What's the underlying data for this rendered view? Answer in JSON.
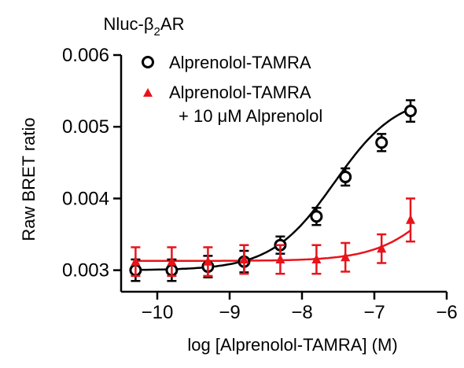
{
  "chart_data": {
    "type": "scatter",
    "title": "Nluc-β2AR",
    "xlabel": "log [Alprenolol-TAMRA] (M)",
    "ylabel": "Raw BRET ratio",
    "xlim": [
      -10.5,
      -6
    ],
    "ylim": [
      0.0027,
      0.006
    ],
    "xticks": [
      -10,
      -9,
      -8,
      -7,
      -6
    ],
    "xtick_labels": [
      "−10",
      "−9",
      "−8",
      "−7",
      "−6"
    ],
    "yticks": [
      0.003,
      0.004,
      0.005,
      0.006
    ],
    "ytick_labels": [
      "0.003",
      "0.004",
      "0.005",
      "0.006"
    ],
    "legend_position": "top",
    "series": [
      {
        "name": "Alprenolol-TAMRA",
        "marker": "open-circle",
        "color": "#000000",
        "x": [
          -10.3,
          -9.8,
          -9.3,
          -8.8,
          -8.3,
          -7.8,
          -7.4,
          -6.9,
          -6.5
        ],
        "y": [
          0.003,
          0.003,
          0.00305,
          0.00312,
          0.00335,
          0.00375,
          0.0043,
          0.00478,
          0.00522
        ],
        "err": [
          0.00015,
          0.00015,
          0.00015,
          0.00015,
          0.00012,
          0.00012,
          0.00012,
          0.00012,
          0.00015
        ],
        "fit": {
          "bottom": 0.003,
          "top": 0.00545,
          "logEC50": -7.55,
          "hill": 1.0
        }
      },
      {
        "name": "Alprenolol-TAMRA",
        "name_line2": "+ 10 μM Alprenolol",
        "marker": "filled-triangle",
        "color": "#e8141b",
        "x": [
          -10.3,
          -9.8,
          -9.3,
          -8.8,
          -8.3,
          -7.8,
          -7.4,
          -6.9,
          -6.5
        ],
        "y": [
          0.00312,
          0.00312,
          0.00312,
          0.00315,
          0.00315,
          0.00315,
          0.00318,
          0.0033,
          0.0037
        ],
        "err": [
          0.0002,
          0.0002,
          0.0002,
          0.0002,
          0.0002,
          0.0002,
          0.0002,
          0.0002,
          0.0003
        ],
        "fit": {
          "bottom": 0.00313,
          "top": 0.0049,
          "logEC50": -6.0,
          "hill": 1.0
        }
      }
    ]
  }
}
